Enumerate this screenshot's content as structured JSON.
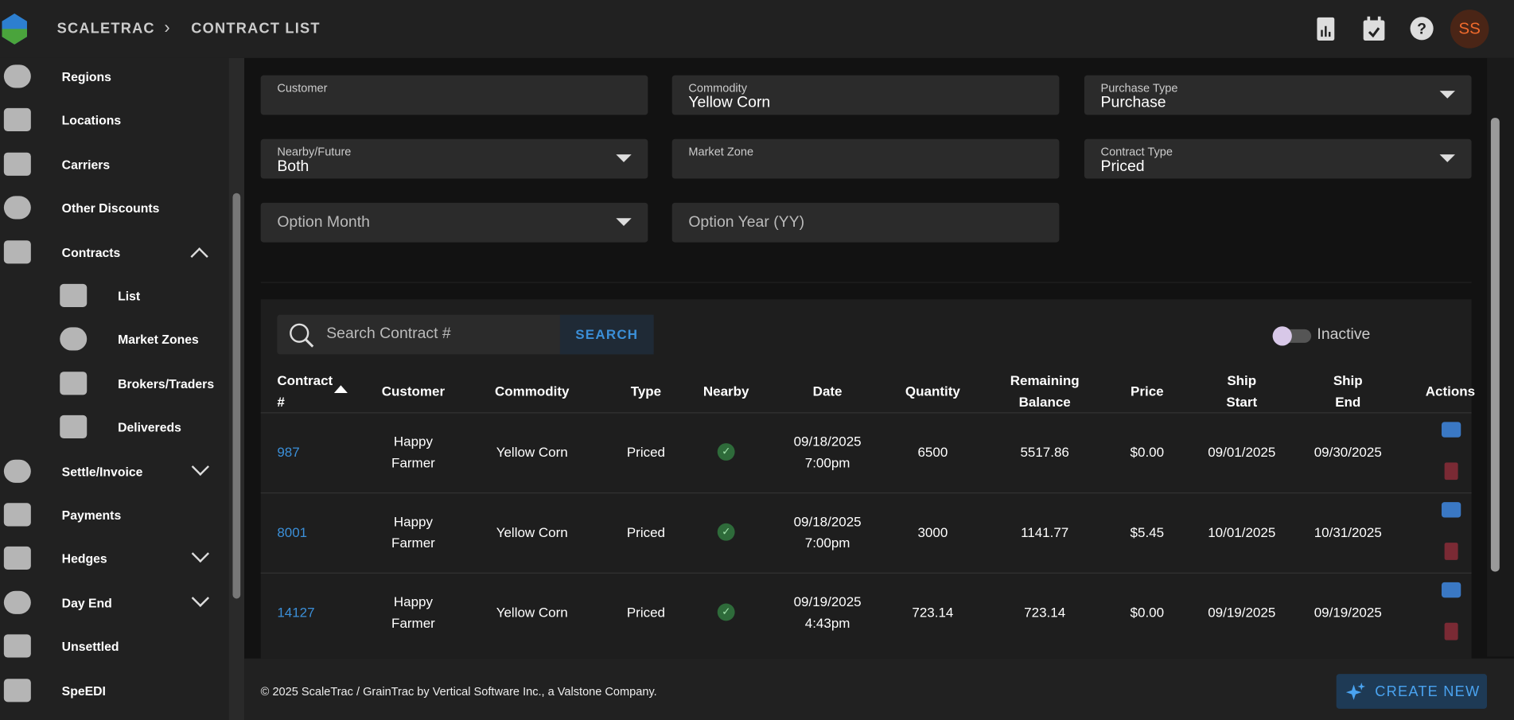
{
  "header": {
    "app": "SCALETRAC",
    "page": "CONTRACT LIST",
    "avatar": "SS"
  },
  "sidebar": [
    {
      "label": "Regions"
    },
    {
      "label": "Locations"
    },
    {
      "label": "Carriers"
    },
    {
      "label": "Other Discounts"
    },
    {
      "label": "Contracts",
      "expander": "up"
    },
    {
      "label": "List",
      "sub": true
    },
    {
      "label": "Market Zones",
      "sub": true
    },
    {
      "label": "Brokers/Traders",
      "sub": true
    },
    {
      "label": "Delivereds",
      "sub": true
    },
    {
      "label": "Settle/Invoice",
      "expander": "down"
    },
    {
      "label": "Payments"
    },
    {
      "label": "Hedges",
      "expander": "down"
    },
    {
      "label": "Day End",
      "expander": "down"
    },
    {
      "label": "Unsettled"
    },
    {
      "label": "SpeEDI"
    }
  ],
  "filters": [
    {
      "label": "Customer",
      "value": null,
      "dropdown": false
    },
    {
      "label": "Commodity",
      "value": "Yellow Corn",
      "dropdown": false
    },
    {
      "label": "Purchase Type",
      "value": "Purchase",
      "dropdown": true
    },
    {
      "label": "Nearby/Future",
      "value": "Both",
      "dropdown": true
    },
    {
      "label": "Market Zone",
      "value": null,
      "dropdown": false
    },
    {
      "label": "Contract Type",
      "value": "Priced",
      "dropdown": true
    },
    {
      "placeholder": "Option Month",
      "dropdown": true
    },
    {
      "placeholder": "Option Year (YY)",
      "dropdown": false
    }
  ],
  "search": {
    "placeholder": "Search Contract #",
    "button": "SEARCH",
    "toggle": "Inactive"
  },
  "table": {
    "headers": [
      [
        "Contract",
        "#"
      ],
      [
        "Customer"
      ],
      [
        "Commodity"
      ],
      [
        "Type"
      ],
      [
        "Nearby"
      ],
      [
        "Date"
      ],
      [
        "Quantity"
      ],
      [
        "Remaining",
        "Balance"
      ],
      [
        "Price"
      ],
      [
        "Ship",
        "Start"
      ],
      [
        "Ship",
        "End"
      ],
      [
        "Actions"
      ]
    ],
    "rows": [
      [
        [
          "987"
        ],
        [
          "Happy",
          "Farmer"
        ],
        [
          "Yellow Corn"
        ],
        [
          "Priced"
        ],
        null,
        [
          "09/18/2025",
          "7:00pm"
        ],
        [
          "6500"
        ],
        [
          "5517.86"
        ],
        [
          "$0.00"
        ],
        [
          "09/01/2025"
        ],
        [
          "09/30/2025"
        ]
      ],
      [
        [
          "8001"
        ],
        [
          "Happy",
          "Farmer"
        ],
        [
          "Yellow Corn"
        ],
        [
          "Priced"
        ],
        null,
        [
          "09/18/2025",
          "7:00pm"
        ],
        [
          "3000"
        ],
        [
          "1141.77"
        ],
        [
          "$5.45"
        ],
        [
          "10/01/2025"
        ],
        [
          "10/31/2025"
        ]
      ],
      [
        [
          "14127"
        ],
        [
          "Happy",
          "Farmer"
        ],
        [
          "Yellow Corn"
        ],
        [
          "Priced"
        ],
        null,
        [
          "09/19/2025",
          "4:43pm"
        ],
        [
          "723.14"
        ],
        [
          "723.14"
        ],
        [
          "$0.00"
        ],
        [
          "09/19/2025"
        ],
        [
          "09/19/2025"
        ]
      ]
    ]
  },
  "footer": {
    "copyright": "© 2025 ScaleTrac / GrainTrac by Vertical Software Inc., a Valstone Company.",
    "button": "CREATE NEW"
  }
}
